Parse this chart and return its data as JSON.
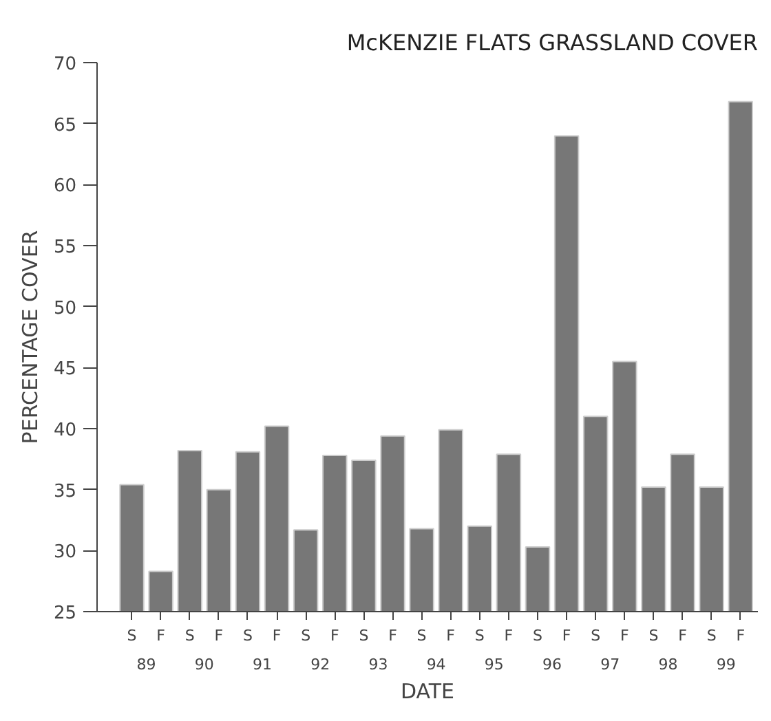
{
  "chart_data": {
    "type": "bar",
    "title": "McKENZIE FLATS GRASSLAND COVER",
    "xlabel": "DATE",
    "ylabel": "PERCENTAGE COVER",
    "categories": [
      "S",
      "F",
      "S",
      "F",
      "S",
      "F",
      "S",
      "F",
      "S",
      "F",
      "S",
      "F",
      "S",
      "F",
      "S",
      "F",
      "S",
      "F",
      "S",
      "F",
      "S",
      "F"
    ],
    "annotations": [
      "89",
      "90",
      "91",
      "92",
      "93",
      "94",
      "95",
      "96",
      "97",
      "98",
      "99"
    ],
    "values": [
      35.4,
      28.3,
      38.2,
      35.0,
      38.1,
      40.2,
      31.7,
      37.8,
      37.4,
      39.4,
      31.8,
      39.9,
      32.0,
      37.9,
      30.3,
      64.0,
      41.0,
      45.5,
      35.2,
      37.9,
      35.2,
      66.8
    ],
    "color": "#777777",
    "ylim": [
      25,
      70
    ],
    "yticks": [
      25,
      30,
      35,
      40,
      45,
      50,
      55,
      60,
      65,
      70
    ],
    "grid": false
  }
}
